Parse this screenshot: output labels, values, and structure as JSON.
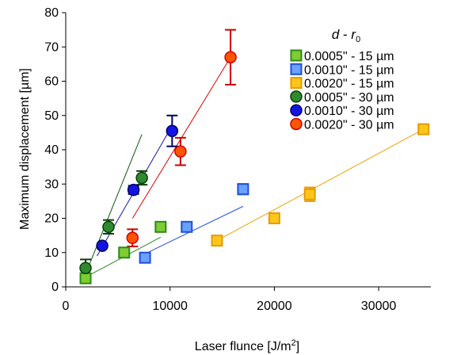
{
  "chart_data": {
    "type": "scatter",
    "title": "",
    "xlabel": "Laser flunce [J/m",
    "xlabel_sup": "2",
    "xlabel_end": "]",
    "ylabel": "Maximum displacement [µm]",
    "xlim": [
      0,
      35000
    ],
    "ylim": [
      0,
      80
    ],
    "xticks": [
      0,
      10000,
      20000,
      30000
    ],
    "xtick_labels": [
      "0",
      "10000",
      "20000",
      "30000"
    ],
    "yticks": [
      0,
      10,
      20,
      30,
      40,
      50,
      60,
      70,
      80
    ],
    "ytick_labels": [
      "0",
      "10",
      "20",
      "30",
      "40",
      "50",
      "60",
      "70",
      "80"
    ],
    "grid": false,
    "legend_position": "top-right",
    "legend_title": {
      "main": "d",
      "sep": " - ",
      "r": "r",
      "sub": "0"
    },
    "series": [
      {
        "name": "0.0005\" - 15 µm",
        "marker": "square",
        "fill": "#80cc33",
        "stroke": "#2a8a1a",
        "points": [
          [
            1900,
            2.5
          ],
          [
            5600,
            10
          ],
          [
            9100,
            17.5
          ]
        ],
        "errors": [
          0,
          0,
          0
        ],
        "fit": {
          "x": [
            2000,
            9100
          ],
          "y": [
            3,
            14.5
          ],
          "color": "#2a8a1a"
        }
      },
      {
        "name": "0.0010\" - 15 µm",
        "marker": "square",
        "fill": "#6aa0ff",
        "stroke": "#1f4fd8",
        "points": [
          [
            7600,
            8.5
          ],
          [
            11600,
            17.5
          ],
          [
            17000,
            28.5
          ]
        ],
        "errors": [
          0,
          0,
          1.5
        ],
        "fit": {
          "x": [
            7500,
            17000
          ],
          "y": [
            9.5,
            23.5
          ],
          "color": "#1f4fd8"
        }
      },
      {
        "name": "0.0020\" - 15 µm",
        "marker": "square",
        "fill": "#ffc61a",
        "stroke": "#e89a00",
        "points": [
          [
            14500,
            13.5
          ],
          [
            20000,
            20
          ],
          [
            23400,
            27
          ],
          [
            34300,
            46
          ]
        ],
        "errors": [
          0,
          0,
          2,
          0
        ],
        "fit": {
          "x": [
            14500,
            34300
          ],
          "y": [
            13.5,
            46
          ],
          "color": "#f0a000"
        }
      },
      {
        "name": "0.0005\" - 30 µm",
        "marker": "circle",
        "fill": "#2f8a2f",
        "stroke": "#0a3d0a",
        "points": [
          [
            1900,
            5.5
          ],
          [
            4100,
            17.5
          ],
          [
            7300,
            31.8
          ]
        ],
        "errors": [
          2.5,
          2,
          2
        ],
        "fit": {
          "x": [
            1800,
            7300
          ],
          "y": [
            3,
            44.5
          ],
          "color": "#0a5a0a"
        }
      },
      {
        "name": "0.0010\" - 30 µm",
        "marker": "circle",
        "fill": "#1414e0",
        "stroke": "#000066",
        "points": [
          [
            3500,
            12
          ],
          [
            6500,
            28.3
          ],
          [
            10200,
            45.5
          ]
        ],
        "errors": [
          0,
          1.2,
          4.5
        ],
        "fit": {
          "x": [
            3000,
            10200
          ],
          "y": [
            9,
            47
          ],
          "color": "#1414b4"
        }
      },
      {
        "name": "0.0020\" - 30 µm",
        "marker": "circle",
        "fill": "#ff5500",
        "stroke": "#cc0000",
        "points": [
          [
            6400,
            14.3
          ],
          [
            11000,
            39.5
          ],
          [
            15800,
            67
          ]
        ],
        "errors": [
          2.5,
          4,
          8
        ],
        "fit": {
          "x": [
            6400,
            15800
          ],
          "y": [
            20,
            67
          ],
          "color": "#e00000"
        }
      }
    ]
  }
}
